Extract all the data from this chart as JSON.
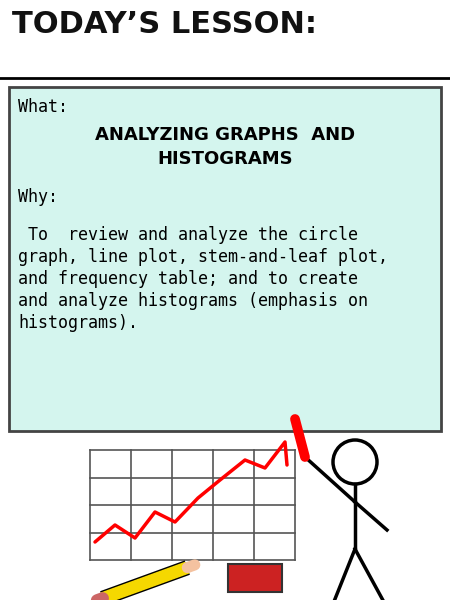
{
  "title": "TODAY’S LESSON:",
  "title_fontsize": 22,
  "title_color": "#111111",
  "title_font": "Impact",
  "bg_color": "#ffffff",
  "box_bg_color": "#d4f5ee",
  "box_edge_color": "#444444",
  "what_label": "What:",
  "what_label_fontsize": 12,
  "what_heading_line1": "ANALYZING GRAPHS  AND",
  "what_heading_line2": "HISTOGRAMS",
  "what_heading_fontsize": 13,
  "what_heading_font": "Impact",
  "why_label": "Why:",
  "why_label_fontsize": 12,
  "why_text_lines": [
    " To  review and analyze the circle",
    "graph, line plot, stem-and-leaf plot,",
    "and frequency table; and to create",
    "and analyze histograms (emphasis on",
    "histograms)."
  ],
  "why_text_fontsize": 12
}
